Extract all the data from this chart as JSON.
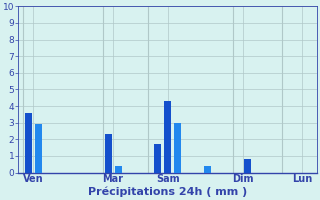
{
  "title": "Précipitations 24h ( mm )",
  "ylim": [
    0,
    10
  ],
  "yticks": [
    0,
    1,
    2,
    3,
    4,
    5,
    6,
    7,
    8,
    9,
    10
  ],
  "background_color": "#d8f2f0",
  "grid_color": "#b0c8c8",
  "bars": [
    {
      "x": 1,
      "height": 3.6,
      "color": "#1450cc"
    },
    {
      "x": 2,
      "height": 2.9,
      "color": "#2288ee"
    },
    {
      "x": 9,
      "height": 2.3,
      "color": "#1450cc"
    },
    {
      "x": 10,
      "height": 0.4,
      "color": "#2288ee"
    },
    {
      "x": 14,
      "height": 1.7,
      "color": "#1450cc"
    },
    {
      "x": 15,
      "height": 4.3,
      "color": "#1450cc"
    },
    {
      "x": 16,
      "height": 3.0,
      "color": "#2288ee"
    },
    {
      "x": 19,
      "height": 0.4,
      "color": "#2288ee"
    },
    {
      "x": 23,
      "height": 0.8,
      "color": "#1450cc"
    }
  ],
  "xlim": [
    0,
    30
  ],
  "bar_width": 0.7,
  "day_labels": [
    "Ven",
    "Mar",
    "Sam",
    "Dim",
    "Lun"
  ],
  "day_x": [
    1.5,
    9.5,
    15.0,
    22.5,
    28.5
  ],
  "vline_x": [
    0.5,
    8.5,
    13.0,
    21.5,
    26.5
  ],
  "title_color": "#3344aa",
  "tick_color": "#3344aa",
  "title_fontsize": 8,
  "tick_fontsize_y": 6.5,
  "tick_fontsize_x": 7
}
